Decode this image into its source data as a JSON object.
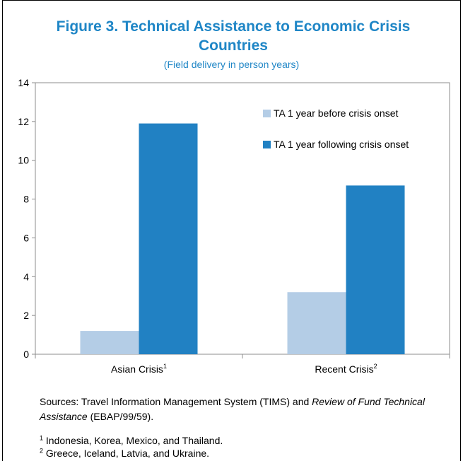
{
  "figure": {
    "title": "Figure 3. Technical Assistance to Economic Crisis Countries",
    "subtitle": "(Field delivery in person years)",
    "sources_prefix": "Sources: Travel Information Management System (TIMS) and ",
    "sources_italic": "Review of Fund Technical Assistance",
    "sources_suffix": " (EBAP/99/59).",
    "note1_mark": "1",
    "note1_text": "Indonesia, Korea, Mexico, and Thailand.",
    "note2_mark": "2",
    "note2_text": "Greece, Iceland, Latvia, and Ukraine."
  },
  "colors": {
    "title": "#1f86c6",
    "series_before": "#b4cde6",
    "series_after": "#2181c3"
  },
  "chart_data": {
    "type": "bar",
    "categories": [
      "Asian Crisis",
      "Recent Crisis"
    ],
    "category_superscripts": [
      "1",
      "2"
    ],
    "series": [
      {
        "name": "TA 1 year before crisis onset",
        "values": [
          1.2,
          3.2
        ]
      },
      {
        "name": "TA 1 year following crisis onset",
        "values": [
          11.9,
          8.7
        ]
      }
    ],
    "ylim": [
      0,
      14
    ],
    "yticks": [
      "0",
      "2",
      "4",
      "6",
      "8",
      "10",
      "12",
      "14"
    ],
    "xlabel": "",
    "ylabel": "",
    "grid": false,
    "legend_position": "top-right"
  }
}
